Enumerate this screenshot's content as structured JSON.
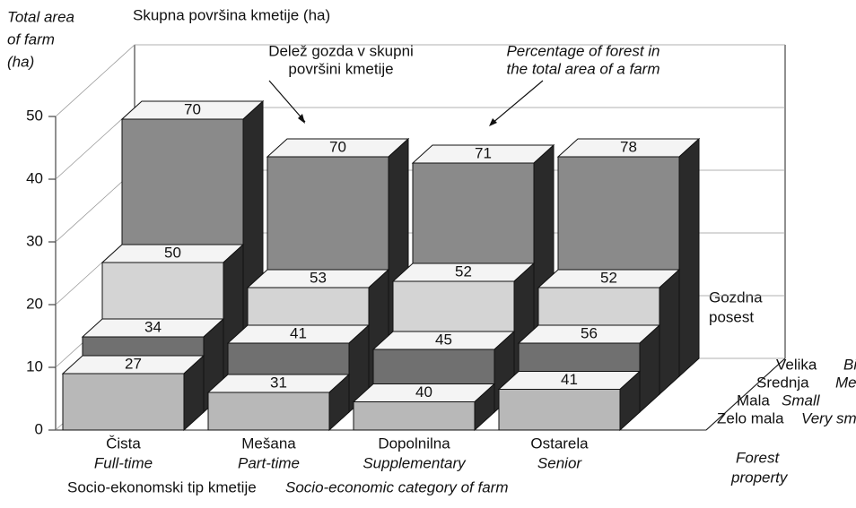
{
  "chart_data": {
    "type": "bar3d",
    "title": "Skupna površina kmetije (ha)",
    "y_label": [
      "Total area",
      "of farm",
      "(ha)"
    ],
    "annotations": {
      "sl": [
        "Delež gozda v skupni",
        "površini kmetije"
      ],
      "en": [
        "Percentage of forest in",
        "the total area of a farm"
      ]
    },
    "depth_title_sl": [
      "Gozdna",
      "posest"
    ],
    "depth_title_en": [
      "Forest",
      "property"
    ],
    "x_label_sl": "Socio-ekonomski tip kmetije",
    "x_label_en": "Socio-economic category of farm",
    "categories": [
      "Čista",
      "Mešana",
      "Dopolnilna",
      "Ostarela"
    ],
    "categories_en": [
      "Full-time",
      "Part-time",
      "Supplementary",
      "Senior"
    ],
    "ylim": [
      0,
      50
    ],
    "yticks": [
      0,
      10,
      20,
      30,
      40,
      50
    ],
    "series": [
      {
        "name": "Zelo mala",
        "name_en": "Very small",
        "color": "#b8b8b8",
        "values": [
          9,
          6,
          4.5,
          6.5
        ],
        "forest_percent": [
          27,
          31,
          40,
          41
        ]
      },
      {
        "name": "Mala",
        "name_en": "Small",
        "color": "#707070",
        "values": [
          12,
          11,
          10,
          11
        ],
        "forest_percent": [
          34,
          41,
          45,
          56
        ]
      },
      {
        "name": "Srednja",
        "name_en": "Medium",
        "color": "#d4d4d4",
        "values": [
          21,
          17,
          18,
          17
        ],
        "forest_percent": [
          50,
          53,
          52,
          52
        ]
      },
      {
        "name": "Velika",
        "name_en": "Big",
        "color": "#8a8a8a",
        "values": [
          41,
          35,
          34,
          35
        ],
        "forest_percent": [
          70,
          70,
          71,
          78
        ]
      }
    ]
  }
}
